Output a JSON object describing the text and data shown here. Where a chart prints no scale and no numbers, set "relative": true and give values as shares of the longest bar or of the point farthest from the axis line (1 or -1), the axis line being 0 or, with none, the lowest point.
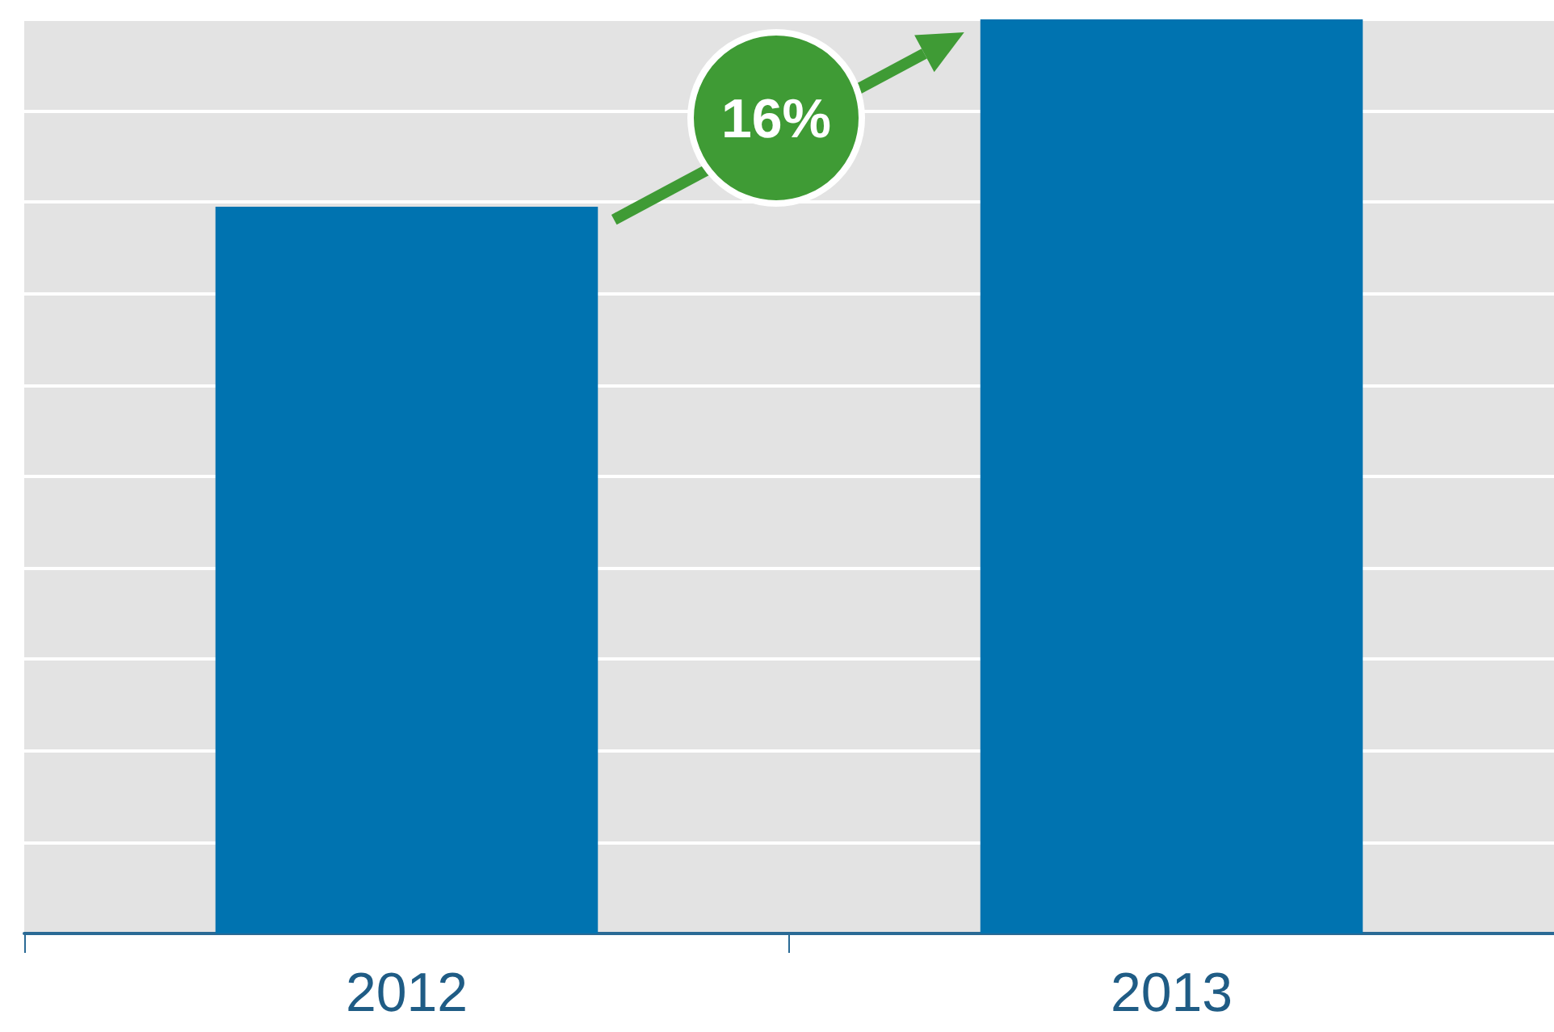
{
  "chart_data": {
    "type": "bar",
    "relative": true,
    "categories": [
      "2012",
      "2013"
    ],
    "values": [
      0.795,
      1
    ],
    "color": "#0073b0",
    "grid": "y",
    "annotations": [
      "16%"
    ]
  }
}
